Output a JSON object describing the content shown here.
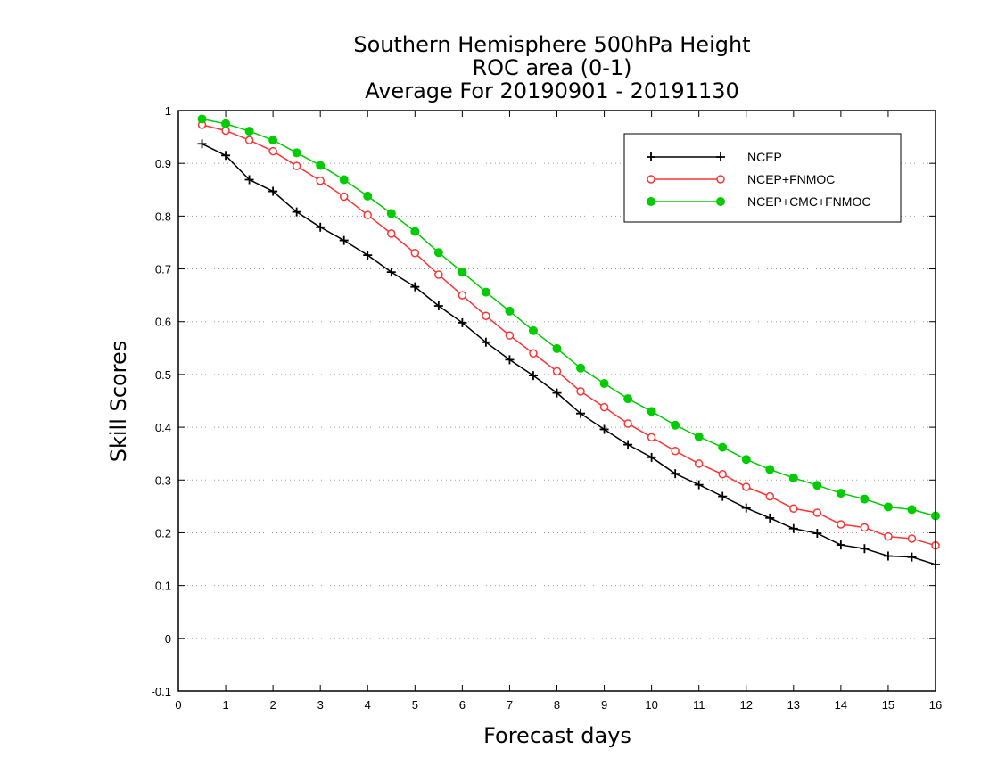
{
  "chart_data": {
    "type": "line",
    "title_lines": [
      "Southern Hemisphere 500hPa Height",
      "ROC area (0-1)",
      "Average For 20190901 - 20191130"
    ],
    "xlabel": "Forecast days",
    "ylabel": "Skill Scores",
    "xlim": [
      0,
      16
    ],
    "ylim": [
      -0.1,
      1
    ],
    "x_ticks": [
      0,
      1,
      2,
      3,
      4,
      5,
      6,
      7,
      8,
      9,
      10,
      11,
      12,
      13,
      14,
      15,
      16
    ],
    "x_tick_labels": [
      "0",
      "1",
      "2",
      "3",
      "4",
      "5",
      "6",
      "7",
      "8",
      "9",
      "10",
      "11",
      "12",
      "13",
      "14",
      "15",
      "16"
    ],
    "y_ticks": [
      -0.1,
      0,
      0.1,
      0.2,
      0.3,
      0.4,
      0.5,
      0.6,
      0.7,
      0.8,
      0.9,
      1
    ],
    "y_tick_labels": [
      "-0.1",
      "0",
      "0.1",
      "0.2",
      "0.3",
      "0.4",
      "0.5",
      "0.6",
      "0.7",
      "0.8",
      "0.9",
      "1"
    ],
    "grid": "horizontal dotted",
    "legend_position": "top-right",
    "x": [
      0.5,
      1,
      1.5,
      2,
      2.5,
      3,
      3.5,
      4,
      4.5,
      5,
      5.5,
      6,
      6.5,
      7,
      7.5,
      8,
      8.5,
      9,
      9.5,
      10,
      10.5,
      11,
      11.5,
      12,
      12.5,
      13,
      13.5,
      14,
      14.5,
      15,
      15.5,
      16
    ],
    "series": [
      {
        "name": "NCEP",
        "color": "#000000",
        "marker": "plus",
        "values": [
          0.937,
          0.915,
          0.869,
          0.847,
          0.808,
          0.779,
          0.754,
          0.726,
          0.694,
          0.666,
          0.63,
          0.598,
          0.561,
          0.528,
          0.498,
          0.465,
          0.426,
          0.396,
          0.367,
          0.343,
          0.312,
          0.291,
          0.269,
          0.247,
          0.228,
          0.208,
          0.199,
          0.177,
          0.17,
          0.156,
          0.154,
          0.14
        ]
      },
      {
        "name": "NCEP+FNMOC",
        "color": "#ff3333",
        "marker": "open-circle",
        "values": [
          0.973,
          0.962,
          0.944,
          0.923,
          0.895,
          0.867,
          0.837,
          0.802,
          0.767,
          0.73,
          0.689,
          0.65,
          0.611,
          0.574,
          0.54,
          0.506,
          0.468,
          0.438,
          0.407,
          0.381,
          0.355,
          0.331,
          0.311,
          0.287,
          0.269,
          0.246,
          0.238,
          0.216,
          0.21,
          0.193,
          0.189,
          0.176
        ]
      },
      {
        "name": "NCEP+CMC+FNMOC",
        "color": "#00cc00",
        "marker": "filled-circle",
        "values": [
          0.984,
          0.975,
          0.961,
          0.944,
          0.92,
          0.896,
          0.869,
          0.838,
          0.805,
          0.771,
          0.731,
          0.694,
          0.656,
          0.62,
          0.583,
          0.549,
          0.512,
          0.483,
          0.454,
          0.43,
          0.404,
          0.382,
          0.362,
          0.339,
          0.32,
          0.304,
          0.29,
          0.275,
          0.264,
          0.249,
          0.244,
          0.232
        ]
      }
    ]
  }
}
